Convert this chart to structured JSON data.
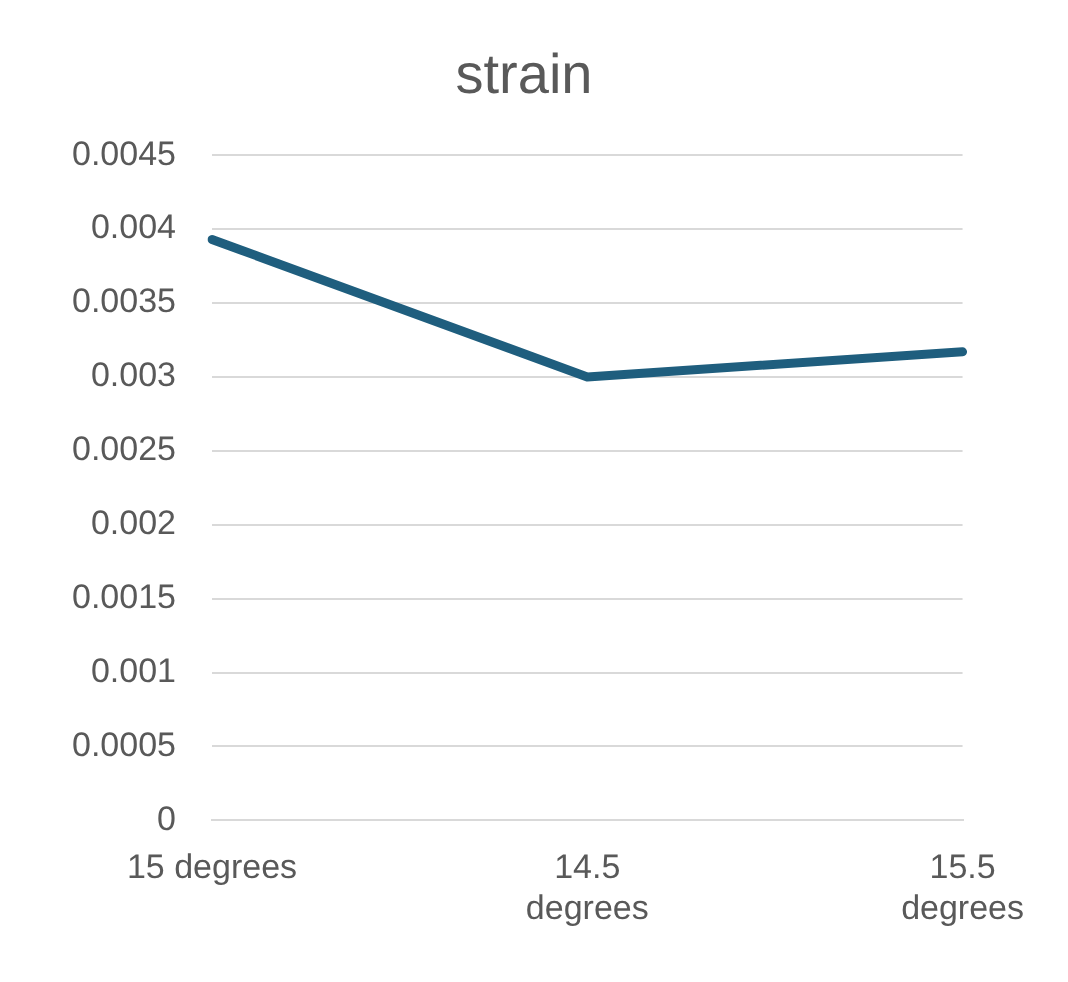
{
  "chart_data": {
    "type": "line",
    "title": "strain",
    "categories": [
      "15 degrees",
      "14.5 degrees",
      "15.5 degrees"
    ],
    "series": [
      {
        "color": "#1f5e7e",
        "values": [
          0.00393,
          0.003,
          0.00317
        ]
      }
    ],
    "ylim": [
      0,
      0.0045
    ],
    "yticks": [
      0,
      0.0005,
      0.001,
      0.0015,
      0.002,
      0.0025,
      0.003,
      0.0035,
      0.004,
      0.0045
    ],
    "grid": "y",
    "legend": false,
    "marker": "none",
    "line_style": "solid"
  }
}
